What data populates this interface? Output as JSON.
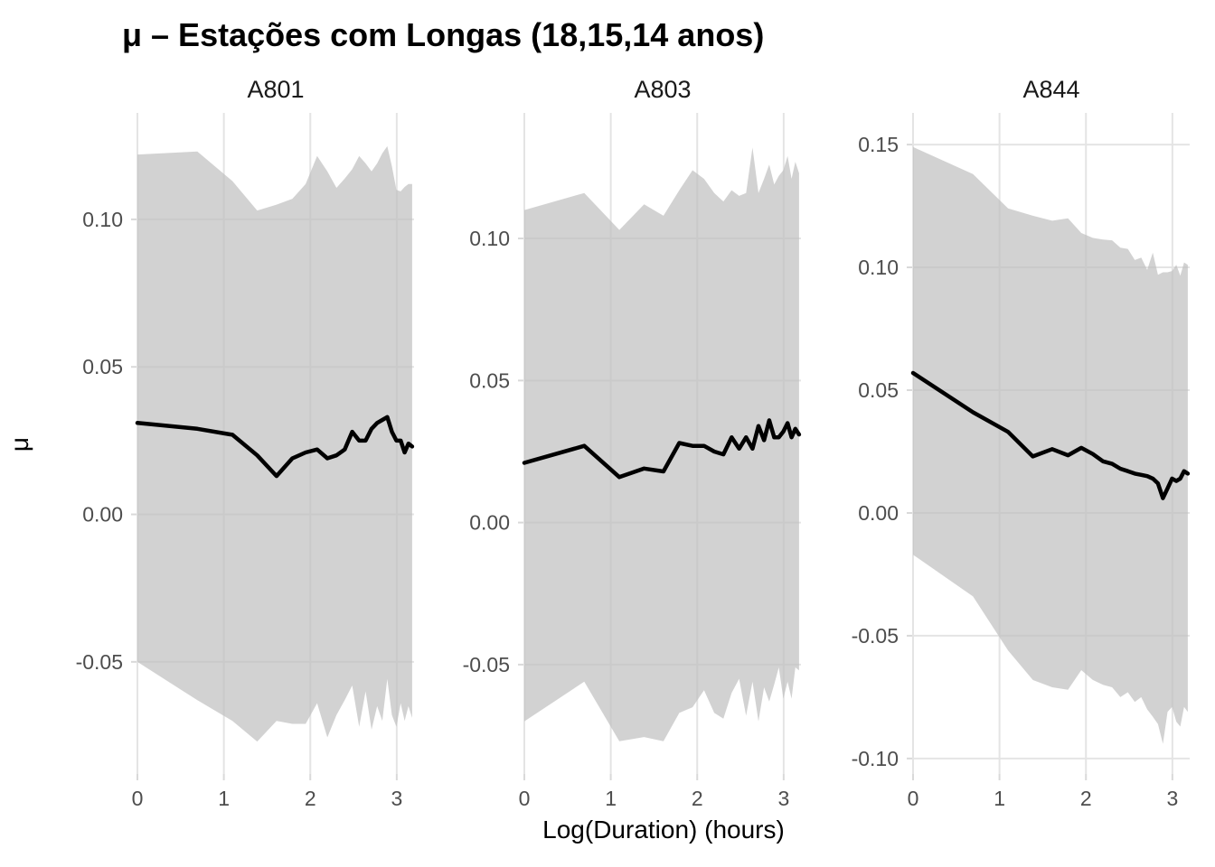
{
  "chart_data": {
    "type": "line",
    "title": "μ – Estações com Longas (18,15,14 anos)",
    "xlabel": "Log(Duration) (hours)",
    "ylabel": "μ",
    "legend": "none",
    "grid": "major-only",
    "colors": {
      "line": "#000000",
      "ribbon": "rgba(191,191,191,0.7)",
      "grid": "#e4e4e4",
      "tick": "#d9d9d9",
      "tick_label": "#4d4d4d",
      "background": "#ffffff"
    },
    "x": [
      0,
      0.693,
      1.099,
      1.386,
      1.609,
      1.792,
      1.946,
      2.079,
      2.197,
      2.303,
      2.398,
      2.485,
      2.565,
      2.639,
      2.708,
      2.773,
      2.833,
      2.89,
      2.944,
      2.996,
      3.045,
      3.091,
      3.135,
      3.178
    ],
    "xlim": [
      0,
      3.2
    ],
    "x_ticks": [
      0,
      1,
      2,
      3
    ],
    "x_tick_labels": [
      "0",
      "1",
      "2",
      "3"
    ],
    "panels": [
      {
        "label": "A801",
        "ylim": [
          -0.088,
          0.1361
        ],
        "y_ticks": [
          0.1,
          0.05,
          0.0,
          -0.05
        ],
        "y_tick_labels": [
          "0.10",
          "0.05",
          "0.00",
          "-0.05"
        ],
        "mean": [
          0.031,
          0.029,
          0.027,
          0.02,
          0.013,
          0.019,
          0.021,
          0.022,
          0.019,
          0.02,
          0.022,
          0.028,
          0.025,
          0.025,
          0.029,
          0.031,
          0.032,
          0.033,
          0.028,
          0.025,
          0.025,
          0.021,
          0.024,
          0.023
        ],
        "upper": [
          0.122,
          0.123,
          0.113,
          0.103,
          0.105,
          0.107,
          0.112,
          0.1215,
          0.1163,
          0.1107,
          0.1138,
          0.117,
          0.1215,
          0.119,
          0.1163,
          0.119,
          0.1224,
          0.1248,
          0.118,
          0.11,
          0.1095,
          0.111,
          0.112,
          0.112
        ],
        "lower": [
          -0.05,
          -0.063,
          -0.07,
          -0.077,
          -0.07,
          -0.071,
          -0.071,
          -0.064,
          -0.0756,
          -0.068,
          -0.063,
          -0.058,
          -0.072,
          -0.06,
          -0.073,
          -0.065,
          -0.07,
          -0.0558,
          -0.068,
          -0.072,
          -0.064,
          -0.07,
          -0.065,
          -0.069
        ]
      },
      {
        "label": "A803",
        "ylim": [
          -0.0885,
          0.1442
        ],
        "y_ticks": [
          0.1,
          0.05,
          0.0,
          -0.05
        ],
        "y_tick_labels": [
          "0.10",
          "0.05",
          "0.00",
          "-0.05"
        ],
        "mean": [
          0.021,
          0.027,
          0.016,
          0.019,
          0.018,
          0.028,
          0.027,
          0.027,
          0.025,
          0.024,
          0.03,
          0.026,
          0.03,
          0.026,
          0.034,
          0.029,
          0.036,
          0.03,
          0.03,
          0.032,
          0.035,
          0.03,
          0.033,
          0.031
        ],
        "upper": [
          0.11,
          0.116,
          0.103,
          0.112,
          0.108,
          0.117,
          0.124,
          0.121,
          0.116,
          0.113,
          0.117,
          0.115,
          0.116,
          0.132,
          0.116,
          0.121,
          0.126,
          0.119,
          0.122,
          0.124,
          0.129,
          0.121,
          0.127,
          0.123
        ],
        "lower": [
          -0.07,
          -0.056,
          -0.077,
          -0.0755,
          -0.077,
          -0.067,
          -0.065,
          -0.059,
          -0.067,
          -0.069,
          -0.06,
          -0.055,
          -0.068,
          -0.056,
          -0.07,
          -0.058,
          -0.063,
          -0.057,
          -0.051,
          -0.062,
          -0.056,
          -0.062,
          -0.051,
          -0.052
        ]
      },
      {
        "label": "A844",
        "ylim": [
          -0.1063,
          0.1629
        ],
        "y_ticks": [
          0.15,
          0.1,
          0.05,
          0.0,
          -0.05,
          -0.1
        ],
        "y_tick_labels": [
          "0.15",
          "0.10",
          "0.05",
          "0.00",
          "-0.05",
          "-0.10"
        ],
        "mean": [
          0.057,
          0.041,
          0.033,
          0.023,
          0.026,
          0.0235,
          0.0265,
          0.024,
          0.021,
          0.02,
          0.018,
          0.017,
          0.016,
          0.0155,
          0.015,
          0.014,
          0.012,
          0.006,
          0.01,
          0.014,
          0.013,
          0.014,
          0.017,
          0.016
        ],
        "upper": [
          0.149,
          0.138,
          0.124,
          0.121,
          0.119,
          0.12,
          0.114,
          0.112,
          0.1113,
          0.111,
          0.108,
          0.1075,
          0.103,
          0.104,
          0.099,
          0.106,
          0.097,
          0.098,
          0.098,
          0.0985,
          0.101,
          0.0966,
          0.102,
          0.101
        ],
        "lower": [
          -0.017,
          -0.034,
          -0.056,
          -0.068,
          -0.071,
          -0.072,
          -0.064,
          -0.068,
          -0.07,
          -0.071,
          -0.075,
          -0.073,
          -0.077,
          -0.075,
          -0.08,
          -0.083,
          -0.086,
          -0.094,
          -0.081,
          -0.079,
          -0.085,
          -0.087,
          -0.079,
          -0.081
        ]
      }
    ]
  }
}
